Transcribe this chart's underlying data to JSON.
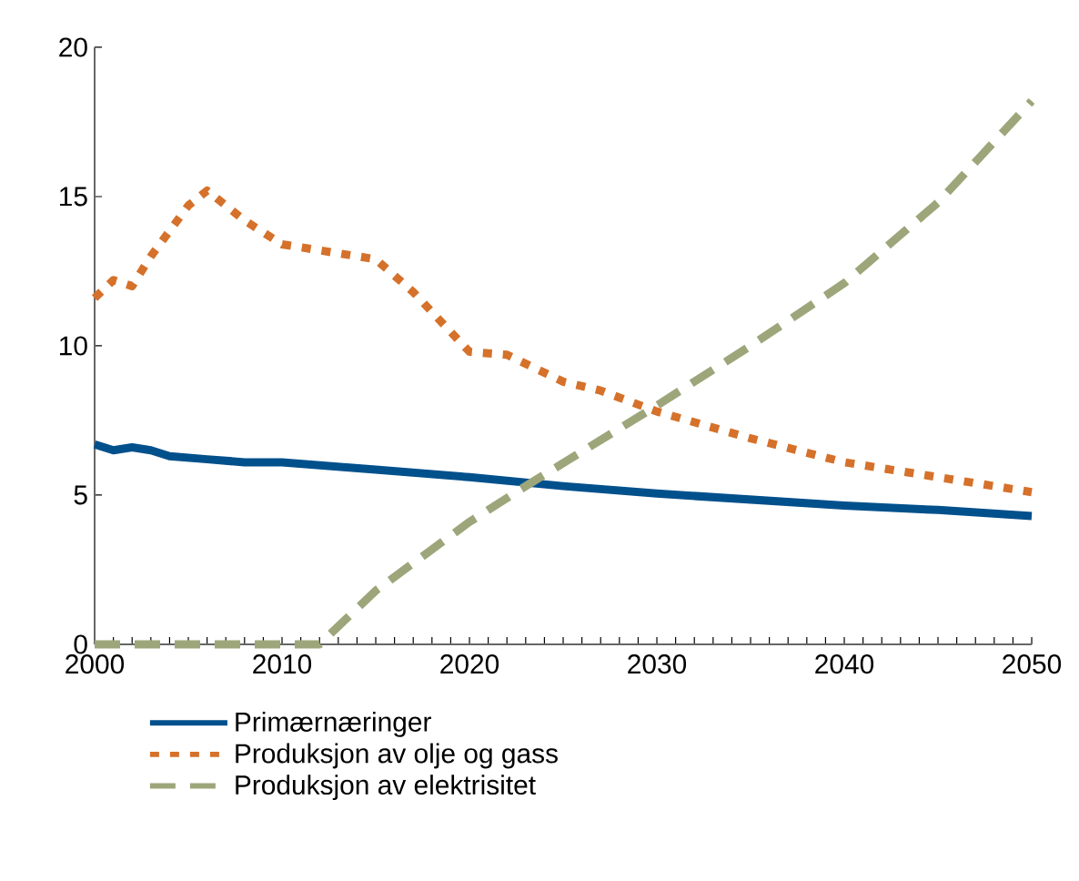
{
  "chart_data": {
    "type": "line",
    "series": [
      {
        "name": "Primærnæringer",
        "color": "#00508c",
        "line_style": "solid",
        "x": [
          2000,
          2001,
          2002,
          2003,
          2004,
          2006,
          2008,
          2010,
          2015,
          2020,
          2025,
          2030,
          2035,
          2040,
          2045,
          2050
        ],
        "values": [
          6.7,
          6.5,
          6.6,
          6.5,
          6.3,
          6.2,
          6.1,
          6.1,
          5.85,
          5.6,
          5.3,
          5.05,
          4.85,
          4.65,
          4.5,
          4.3
        ]
      },
      {
        "name": "Produksjon av olje og gass",
        "color": "#d5712a",
        "line_style": "dotted",
        "x": [
          2000,
          2001,
          2002,
          2003,
          2005,
          2006,
          2008,
          2010,
          2012,
          2015,
          2017,
          2020,
          2022,
          2025,
          2027,
          2030,
          2035,
          2040,
          2045,
          2050
        ],
        "values": [
          11.6,
          12.2,
          12.0,
          13.0,
          14.7,
          15.2,
          14.2,
          13.4,
          13.2,
          12.9,
          11.8,
          9.8,
          9.7,
          8.8,
          8.5,
          7.8,
          6.9,
          6.1,
          5.6,
          5.1
        ]
      },
      {
        "name": "Produksjon av elektrisitet",
        "color": "#9da67a",
        "line_style": "dashed",
        "x": [
          2000,
          2012,
          2015,
          2020,
          2023,
          2030,
          2035,
          2040,
          2045,
          2050
        ],
        "values": [
          0,
          0,
          1.8,
          4.1,
          5.3,
          8.0,
          10.0,
          12.1,
          14.8,
          18.2
        ]
      }
    ],
    "xlim": [
      2000,
      2050
    ],
    "ylim": [
      0,
      20
    ],
    "xticks": [
      2000,
      {
        "value": 2001,
        "label": null
      },
      {
        "value": 2002,
        "label": null
      },
      {
        "value": 2003,
        "label": null
      },
      {
        "value": 2004,
        "label": null
      },
      {
        "value": 2005,
        "label": null
      },
      {
        "value": 2006,
        "label": null
      },
      {
        "value": 2007,
        "label": null
      },
      {
        "value": 2008,
        "label": null
      },
      {
        "value": 2009,
        "label": null
      },
      2010,
      {
        "value": 2011,
        "label": null
      },
      {
        "value": 2012,
        "label": null
      },
      {
        "value": 2013,
        "label": null
      },
      {
        "value": 2014,
        "label": null
      },
      {
        "value": 2015,
        "label": null
      },
      {
        "value": 2016,
        "label": null
      },
      {
        "value": 2017,
        "label": null
      },
      {
        "value": 2018,
        "label": null
      },
      {
        "value": 2019,
        "label": null
      },
      2020,
      {
        "value": 2021,
        "label": null
      },
      {
        "value": 2022,
        "label": null
      },
      {
        "value": 2023,
        "label": null
      },
      {
        "value": 2024,
        "label": null
      },
      {
        "value": 2025,
        "label": null
      },
      {
        "value": 2026,
        "label": null
      },
      {
        "value": 2027,
        "label": null
      },
      {
        "value": 2028,
        "label": null
      },
      {
        "value": 2029,
        "label": null
      },
      2030,
      {
        "value": 2031,
        "label": null
      },
      {
        "value": 2032,
        "label": null
      },
      {
        "value": 2033,
        "label": null
      },
      {
        "value": 2034,
        "label": null
      },
      {
        "value": 2035,
        "label": null
      },
      {
        "value": 2036,
        "label": null
      },
      {
        "value": 2037,
        "label": null
      },
      {
        "value": 2038,
        "label": null
      },
      {
        "value": 2039,
        "label": null
      },
      2040,
      {
        "value": 2041,
        "label": null
      },
      {
        "value": 2042,
        "label": null
      },
      {
        "value": 2043,
        "label": null
      },
      {
        "value": 2044,
        "label": null
      },
      {
        "value": 2045,
        "label": null
      },
      {
        "value": 2046,
        "label": null
      },
      {
        "value": 2047,
        "label": null
      },
      {
        "value": 2048,
        "label": null
      },
      {
        "value": 2049,
        "label": null
      },
      2050
    ],
    "yticks": [
      0,
      5,
      10,
      15,
      20
    ],
    "grid": false,
    "legend": "bottom"
  }
}
